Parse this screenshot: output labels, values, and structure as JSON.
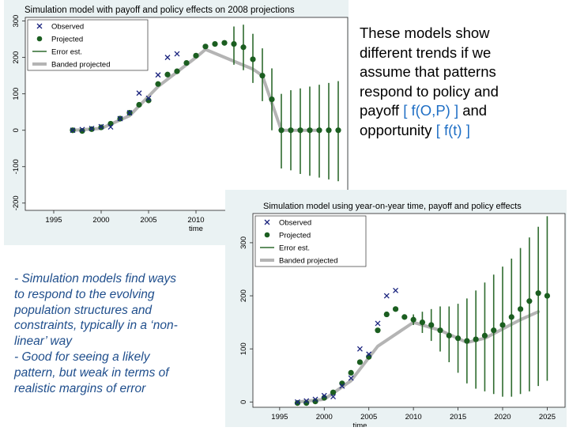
{
  "colors": {
    "panel_bg": "#eaf2f3",
    "plot_bg": "#ffffff",
    "observed": "#1a237e",
    "projected": "#1b5e20",
    "error": "#2e6b2e",
    "banded": "#b4b4b4",
    "note_top": "#000000",
    "note_bracket": "#1f6fc5",
    "note_bottom": "#1f4e8c"
  },
  "notes": {
    "top": {
      "line1": "These models show",
      "line2": "different trends if we",
      "line3": "assume that patterns",
      "line4": "respond to policy and",
      "line5_text": "payoff ",
      "line5_bracket": "[ f(O,P) ]",
      "line5_tail": " and",
      "line6_text": "opportunity ",
      "line6_bracket": "[ f(t) ]"
    },
    "bottom": {
      "line1": "- Simulation models find ways",
      "line2": "to respond to the evolving",
      "line3": "population structures and",
      "line4": "constraints, typically in a ‘non-",
      "line5": "linear’ way",
      "line6": "- Good for seeing a likely",
      "line7": "pattern, but weak in terms of",
      "line8": "realistic margins of error"
    }
  },
  "chart_data": [
    {
      "type": "scatter",
      "title": "Simulation model with payoff and policy effects on 2008 projections",
      "xlabel": "time",
      "ylabel": "",
      "xlim": [
        1992,
        2026
      ],
      "ylim": [
        -220,
        310
      ],
      "xticks": [
        1995,
        2000,
        2005,
        2010
      ],
      "yticks": [
        -200,
        -100,
        0,
        100,
        200,
        300
      ],
      "legend": [
        "Observed",
        "Projected",
        "Error est.",
        "Banded projected"
      ],
      "legend_position": "top-left",
      "observed": {
        "x": [
          1997,
          1998,
          1999,
          2000,
          2001,
          2002,
          2003,
          2004,
          2005,
          2006,
          2007,
          2008
        ],
        "y": [
          0,
          2,
          5,
          10,
          9,
          32,
          48,
          102,
          88,
          152,
          200,
          210
        ]
      },
      "projected": {
        "x": [
          1997,
          1998,
          1999,
          2000,
          2001,
          2002,
          2003,
          2004,
          2005,
          2006,
          2007,
          2008,
          2009,
          2010,
          2011,
          2012,
          2013,
          2014,
          2015,
          2016,
          2017,
          2018,
          2019,
          2020,
          2021,
          2022,
          2023,
          2024,
          2025
        ],
        "y": [
          0,
          -2,
          3,
          8,
          18,
          32,
          48,
          70,
          82,
          127,
          153,
          162,
          185,
          205,
          230,
          237,
          240,
          237,
          228,
          195,
          150,
          85,
          0,
          0,
          0,
          0,
          0,
          0,
          0
        ]
      },
      "error_est": [
        {
          "x": 2014,
          "lo": 180,
          "hi": 285
        },
        {
          "x": 2015,
          "lo": 165,
          "hi": 290
        },
        {
          "x": 2016,
          "lo": 130,
          "hi": 265
        },
        {
          "x": 2017,
          "lo": 80,
          "hi": 225
        },
        {
          "x": 2018,
          "lo": 0,
          "hi": 170
        },
        {
          "x": 2019,
          "lo": -105,
          "hi": 100
        },
        {
          "x": 2020,
          "lo": -110,
          "hi": 110
        },
        {
          "x": 2021,
          "lo": -120,
          "hi": 115
        },
        {
          "x": 2022,
          "lo": -125,
          "hi": 120
        },
        {
          "x": 2023,
          "lo": -130,
          "hi": 125
        },
        {
          "x": 2024,
          "lo": -135,
          "hi": 130
        },
        {
          "x": 2025,
          "lo": -140,
          "hi": 135
        }
      ],
      "banded": {
        "x": [
          1997,
          2000,
          2003,
          2006,
          2008,
          2010,
          2011,
          2016,
          2017,
          2019,
          2023
        ],
        "y": [
          0,
          5,
          40,
          120,
          160,
          200,
          222,
          168,
          150,
          0,
          0
        ]
      }
    },
    {
      "type": "scatter",
      "title": "Simulation model using year-on-year time, payoff and policy effects",
      "xlabel": "time",
      "ylabel": "",
      "xlim": [
        1992,
        2027
      ],
      "ylim": [
        -10,
        355
      ],
      "xticks": [
        1995,
        2000,
        2005,
        2010,
        2015,
        2020,
        2025
      ],
      "yticks": [
        0,
        100,
        200,
        300
      ],
      "legend": [
        "Observed",
        "Projected",
        "Error est.",
        "Banded projected"
      ],
      "legend_position": "top-left",
      "observed": {
        "x": [
          1997,
          1998,
          1999,
          2000,
          2001,
          2002,
          2003,
          2004,
          2005,
          2006,
          2007,
          2008
        ],
        "y": [
          0,
          2,
          5,
          12,
          10,
          30,
          45,
          100,
          90,
          148,
          200,
          210
        ]
      },
      "projected": {
        "x": [
          1997,
          1998,
          1999,
          2000,
          2001,
          2002,
          2003,
          2004,
          2005,
          2006,
          2007,
          2008,
          2009,
          2010,
          2011,
          2012,
          2013,
          2014,
          2015,
          2016,
          2017,
          2018,
          2019,
          2020,
          2021,
          2022,
          2023,
          2024,
          2025
        ],
        "y": [
          -2,
          -2,
          1,
          8,
          18,
          35,
          55,
          75,
          85,
          135,
          165,
          175,
          160,
          155,
          150,
          145,
          135,
          125,
          120,
          115,
          118,
          125,
          135,
          145,
          160,
          175,
          190,
          205,
          200
        ]
      },
      "error_est": [
        {
          "x": 2010,
          "lo": 145,
          "hi": 165
        },
        {
          "x": 2011,
          "lo": 130,
          "hi": 170
        },
        {
          "x": 2012,
          "lo": 115,
          "hi": 175
        },
        {
          "x": 2013,
          "lo": 95,
          "hi": 180
        },
        {
          "x": 2014,
          "lo": 75,
          "hi": 180
        },
        {
          "x": 2015,
          "lo": 55,
          "hi": 185
        },
        {
          "x": 2016,
          "lo": 35,
          "hi": 195
        },
        {
          "x": 2017,
          "lo": 25,
          "hi": 210
        },
        {
          "x": 2018,
          "lo": 20,
          "hi": 225
        },
        {
          "x": 2019,
          "lo": 15,
          "hi": 240
        },
        {
          "x": 2020,
          "lo": 10,
          "hi": 255
        },
        {
          "x": 2021,
          "lo": 10,
          "hi": 270
        },
        {
          "x": 2022,
          "lo": 15,
          "hi": 290
        },
        {
          "x": 2023,
          "lo": 20,
          "hi": 310
        },
        {
          "x": 2024,
          "lo": 30,
          "hi": 330
        },
        {
          "x": 2025,
          "lo": 40,
          "hi": 350
        }
      ],
      "banded": {
        "x": [
          1997,
          2000,
          2003,
          2006,
          2010,
          2013,
          2016,
          2018,
          2022,
          2024
        ],
        "y": [
          0,
          5,
          40,
          105,
          150,
          135,
          112,
          120,
          155,
          170
        ]
      }
    }
  ]
}
